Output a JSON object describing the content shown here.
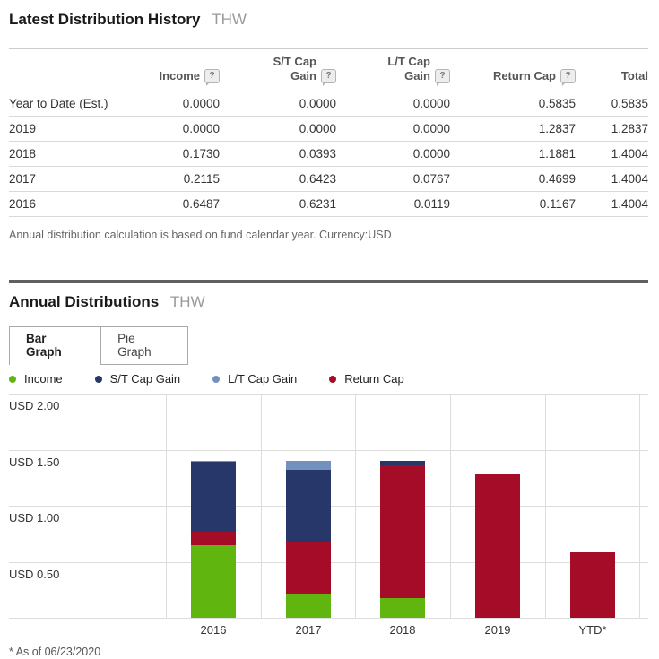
{
  "icons": {
    "help": "?"
  },
  "section1": {
    "title": "Latest Distribution History",
    "ticker": "THW",
    "table": {
      "headers": [
        {
          "label": "",
          "help": false,
          "wrap": false
        },
        {
          "label": "Income",
          "help": true,
          "wrap": false
        },
        {
          "label": "S/T Cap Gain",
          "help": true,
          "wrap": true
        },
        {
          "label": "L/T Cap Gain",
          "help": true,
          "wrap": true
        },
        {
          "label": "Return Cap",
          "help": true,
          "wrap": false
        },
        {
          "label": "Total",
          "help": false,
          "wrap": false
        }
      ],
      "rows": [
        {
          "label": "Year to Date (Est.)",
          "values": [
            "0.0000",
            "0.0000",
            "0.0000",
            "0.5835",
            "0.5835"
          ]
        },
        {
          "label": "2019",
          "values": [
            "0.0000",
            "0.0000",
            "0.0000",
            "1.2837",
            "1.2837"
          ]
        },
        {
          "label": "2018",
          "values": [
            "0.1730",
            "0.0393",
            "0.0000",
            "1.1881",
            "1.4004"
          ]
        },
        {
          "label": "2017",
          "values": [
            "0.2115",
            "0.6423",
            "0.0767",
            "0.4699",
            "1.4004"
          ]
        },
        {
          "label": "2016",
          "values": [
            "0.6487",
            "0.6231",
            "0.0119",
            "0.1167",
            "1.4004"
          ]
        }
      ],
      "note": "Annual distribution calculation is based on fund calendar year. Currency:USD"
    }
  },
  "section2": {
    "title": "Annual Distributions",
    "ticker": "THW",
    "tabs": [
      {
        "label": "Bar Graph",
        "active": true
      },
      {
        "label": "Pie Graph",
        "active": false
      }
    ],
    "footnote": "* As of 06/23/2020"
  },
  "chart_data": {
    "type": "bar",
    "stacked": true,
    "categories": [
      "2016",
      "2017",
      "2018",
      "2019",
      "YTD*"
    ],
    "series": [
      {
        "name": "Income",
        "values": [
          0.6487,
          0.2115,
          0.173,
          0,
          0
        ]
      },
      {
        "name": "Return Cap",
        "values": [
          0.1167,
          0.4699,
          1.1881,
          1.2837,
          0.5835
        ]
      },
      {
        "name": "S/T Cap Gain",
        "values": [
          0.6231,
          0.6423,
          0.0393,
          0,
          0
        ]
      },
      {
        "name": "L/T Cap Gain",
        "values": [
          0.0119,
          0.0767,
          0,
          0,
          0
        ]
      }
    ],
    "stack_order": "bottom-to-top as listed in series",
    "palette": {
      "Income": "#61b50f",
      "S/T Cap Gain": "#27376a",
      "L/T Cap Gain": "#7391bd",
      "Return Cap": "#a50c28"
    },
    "legend_order": [
      "Income",
      "S/T Cap Gain",
      "L/T Cap Gain",
      "Return Cap"
    ],
    "y_ticks": [
      {
        "label": "USD 2.00",
        "value": 2.0
      },
      {
        "label": "USD 1.50",
        "value": 1.5
      },
      {
        "label": "USD 1.00",
        "value": 1.0
      },
      {
        "label": "USD 0.50",
        "value": 0.5
      }
    ],
    "ylim": [
      0,
      2
    ],
    "currency": "USD",
    "grid": true,
    "legend_position": "top"
  }
}
